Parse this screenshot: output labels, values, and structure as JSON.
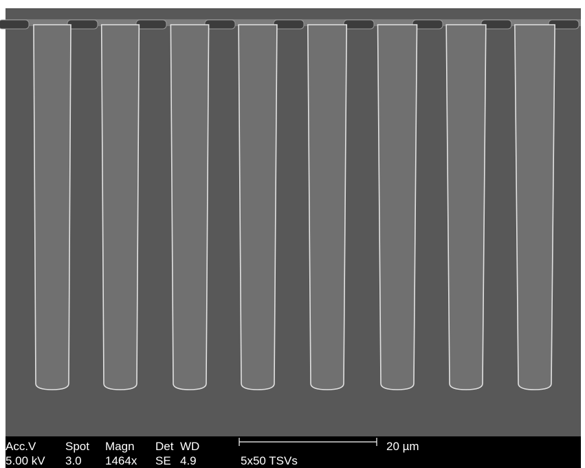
{
  "info_bar": {
    "labels": [
      "Acc.V",
      "Spot",
      "Magn",
      "Det",
      "WD"
    ],
    "values": [
      "5.00 kV",
      "3.0",
      "1464x",
      "SE",
      "4.9"
    ],
    "scale_label": "20 µm",
    "description": "5x50 TSVs"
  }
}
